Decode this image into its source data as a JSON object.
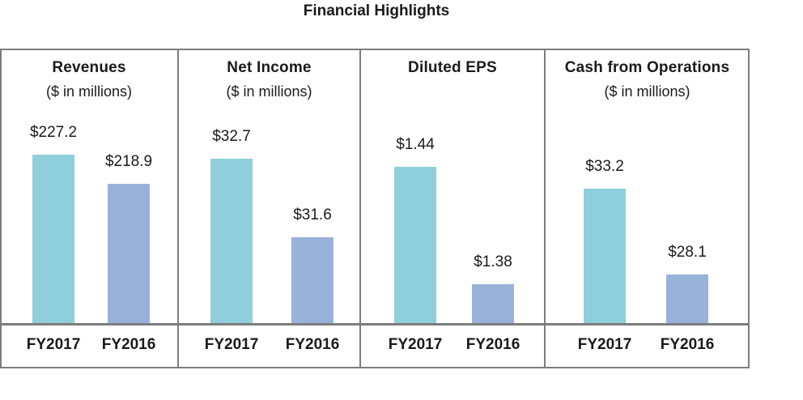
{
  "title": "Financial Highlights",
  "chart_data": [
    {
      "type": "bar",
      "title": "Revenues",
      "subtitle": "($ in millions)",
      "categories": [
        "FY2017",
        "FY2016"
      ],
      "values": [
        227.2,
        218.9
      ],
      "value_labels": [
        "$227.2",
        "$218.9"
      ],
      "ylim": [
        180,
        240
      ],
      "colors": [
        "#8fcfdc",
        "#98b2da"
      ]
    },
    {
      "type": "bar",
      "title": "Net Income",
      "subtitle": "($ in millions)",
      "categories": [
        "FY2017",
        "FY2016"
      ],
      "values": [
        32.7,
        31.6
      ],
      "value_labels": [
        "$32.7",
        "$31.6"
      ],
      "ylim": [
        30.4,
        33.4
      ],
      "colors": [
        "#8fcfdc",
        "#98b2da"
      ]
    },
    {
      "type": "bar",
      "title": "Diluted EPS",
      "subtitle": "",
      "categories": [
        "FY2017",
        "FY2016"
      ],
      "values": [
        1.44,
        1.38
      ],
      "value_labels": [
        "$1.44",
        "$1.38"
      ],
      "ylim": [
        1.36,
        1.47
      ],
      "colors": [
        "#8fcfdc",
        "#98b2da"
      ]
    },
    {
      "type": "bar",
      "title": "Cash from Operations",
      "subtitle": "($ in millions)",
      "categories": [
        "FY2017",
        "FY2016"
      ],
      "values": [
        33.2,
        28.1
      ],
      "value_labels": [
        "$33.2",
        "$28.1"
      ],
      "ylim": [
        25.2,
        38.0
      ],
      "colors": [
        "#8fcfdc",
        "#98b2da"
      ]
    }
  ]
}
